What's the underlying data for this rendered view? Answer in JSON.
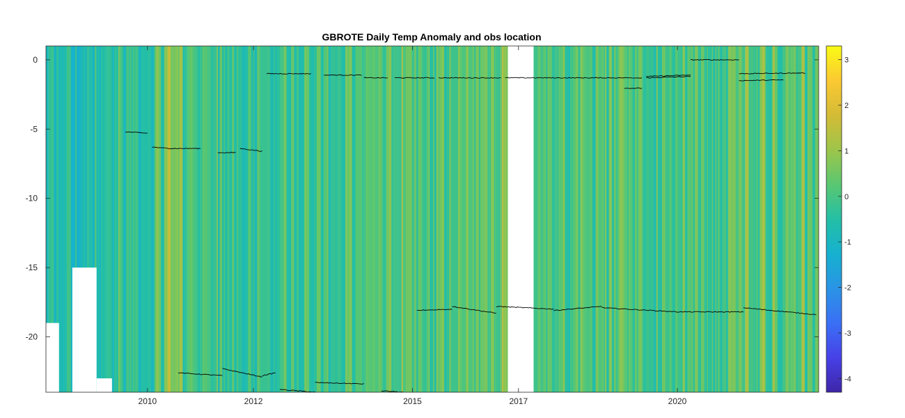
{
  "chart_data": {
    "type": "heatmap",
    "title": "GBROTE Daily Temp Anomaly and obs location",
    "xlabel": "",
    "ylabel": "",
    "x_tick_labels": [
      "2010",
      "2012",
      "2015",
      "2017",
      "2020"
    ],
    "x_tick_dates": [
      "2010-01-01",
      "2012-01-01",
      "2015-01-01",
      "2017-01-01",
      "2020-01-01"
    ],
    "xlim": [
      "2008-02-01",
      "2022-09-01"
    ],
    "y_ticks": [
      0,
      -5,
      -10,
      -15,
      -20
    ],
    "ylim": [
      -24,
      1
    ],
    "colorbar": {
      "colormap": "parula",
      "clim": [
        -4.3,
        3.3
      ],
      "ticks": [
        3,
        2,
        1,
        0,
        -1,
        -2,
        -3,
        -4
      ]
    },
    "grid": false,
    "legend": "none",
    "data_gaps": [
      {
        "start": "2016-10-20",
        "end": "2017-04-15",
        "depth_min": -24,
        "depth_max": 1
      },
      {
        "start": "2008-02-01",
        "end": "2008-05-01",
        "depth_min": -24,
        "depth_max": -19
      },
      {
        "start": "2008-08-01",
        "end": "2009-01-15",
        "depth_min": -24,
        "depth_max": -15
      },
      {
        "start": "2009-01-15",
        "end": "2009-05-01",
        "depth_min": -24,
        "depth_max": -23
      }
    ],
    "anomaly_periods": [
      {
        "start": "2008-02-01",
        "end": "2008-08-01",
        "value": -0.6
      },
      {
        "start": "2008-08-01",
        "end": "2009-04-01",
        "value": -0.9
      },
      {
        "start": "2009-04-01",
        "end": "2010-03-01",
        "value": -0.3
      },
      {
        "start": "2010-03-01",
        "end": "2010-05-20",
        "value": 0.3
      },
      {
        "start": "2010-05-20",
        "end": "2010-09-01",
        "value": 1.0
      },
      {
        "start": "2010-09-01",
        "end": "2012-06-01",
        "value": -0.2
      },
      {
        "start": "2012-06-01",
        "end": "2014-06-01",
        "value": 0.0
      },
      {
        "start": "2014-06-01",
        "end": "2016-10-20",
        "value": 0.2
      },
      {
        "start": "2017-04-15",
        "end": "2019-06-01",
        "value": 0.2
      },
      {
        "start": "2019-06-01",
        "end": "2022-09-01",
        "value": 0.1
      }
    ],
    "obs_location_series": [
      {
        "depth_start": -5.2,
        "depth_end": -5.3,
        "start": "2009-08-01",
        "end": "2010-01-01"
      },
      {
        "depth_start": -6.3,
        "depth_end": -6.4,
        "start": "2010-02-01",
        "end": "2010-06-01"
      },
      {
        "depth_start": -6.4,
        "depth_end": -6.4,
        "start": "2010-06-01",
        "end": "2011-01-01"
      },
      {
        "depth_start": -6.7,
        "depth_end": -6.7,
        "start": "2011-05-01",
        "end": "2011-09-01"
      },
      {
        "depth_start": -6.4,
        "depth_end": -6.6,
        "start": "2011-10-01",
        "end": "2012-03-01"
      },
      {
        "depth_start": -1.0,
        "depth_end": -1.0,
        "start": "2012-04-01",
        "end": "2013-02-01"
      },
      {
        "depth_start": -1.1,
        "depth_end": -1.1,
        "start": "2013-05-01",
        "end": "2014-01-15"
      },
      {
        "depth_start": -1.3,
        "depth_end": -1.3,
        "start": "2014-02-01",
        "end": "2014-07-15"
      },
      {
        "depth_start": -1.3,
        "depth_end": -1.3,
        "start": "2014-09-01",
        "end": "2015-06-01"
      },
      {
        "depth_start": -1.3,
        "depth_end": -1.3,
        "start": "2015-07-01",
        "end": "2016-09-01"
      },
      {
        "depth_start": -1.3,
        "depth_end": -1.3,
        "start": "2016-10-01",
        "end": "2019-05-01"
      },
      {
        "depth_start": -2.05,
        "depth_end": -2.05,
        "start": "2019-01-01",
        "end": "2019-05-01"
      },
      {
        "depth_start": -1.2,
        "depth_end": -1.1,
        "start": "2019-06-01",
        "end": "2020-04-01"
      },
      {
        "depth_start": -1.3,
        "depth_end": -1.2,
        "start": "2019-06-01",
        "end": "2020-04-01"
      },
      {
        "depth_start": -0.0,
        "depth_end": -0.0,
        "start": "2020-04-01",
        "end": "2021-03-01"
      },
      {
        "depth_start": -1.0,
        "depth_end": -0.95,
        "start": "2021-03-01",
        "end": "2022-06-01"
      },
      {
        "depth_start": -1.5,
        "depth_end": -1.45,
        "start": "2021-03-01",
        "end": "2022-01-01"
      },
      {
        "depth_start": -18.1,
        "depth_end": -18.0,
        "start": "2015-02-01",
        "end": "2015-10-01"
      },
      {
        "depth_start": -17.8,
        "depth_end": -18.3,
        "start": "2015-10-01",
        "end": "2016-08-01"
      },
      {
        "depth_start": -17.8,
        "depth_end": -18.0,
        "start": "2016-08-01",
        "end": "2017-09-01"
      },
      {
        "depth_start": -18.1,
        "depth_end": -17.8,
        "start": "2017-09-01",
        "end": "2018-08-01"
      },
      {
        "depth_start": -17.9,
        "depth_end": -18.2,
        "start": "2018-08-01",
        "end": "2020-01-01"
      },
      {
        "depth_start": -18.2,
        "depth_end": -18.2,
        "start": "2020-01-01",
        "end": "2021-04-01"
      },
      {
        "depth_start": -17.9,
        "depth_end": -18.4,
        "start": "2021-04-01",
        "end": "2022-08-15"
      },
      {
        "depth_start": -22.6,
        "depth_end": -22.8,
        "start": "2010-08-01",
        "end": "2011-06-01"
      },
      {
        "depth_start": -22.3,
        "depth_end": -22.9,
        "start": "2011-06-01",
        "end": "2012-03-01"
      },
      {
        "depth_start": -22.8,
        "depth_end": -22.6,
        "start": "2012-03-01",
        "end": "2012-06-01"
      },
      {
        "depth_start": -23.8,
        "depth_end": -24.0,
        "start": "2012-07-01",
        "end": "2013-03-01"
      },
      {
        "depth_start": -23.3,
        "depth_end": -23.4,
        "start": "2013-03-01",
        "end": "2014-02-01"
      },
      {
        "depth_start": -23.9,
        "depth_end": -24.0,
        "start": "2014-06-01",
        "end": "2014-11-01"
      }
    ]
  }
}
